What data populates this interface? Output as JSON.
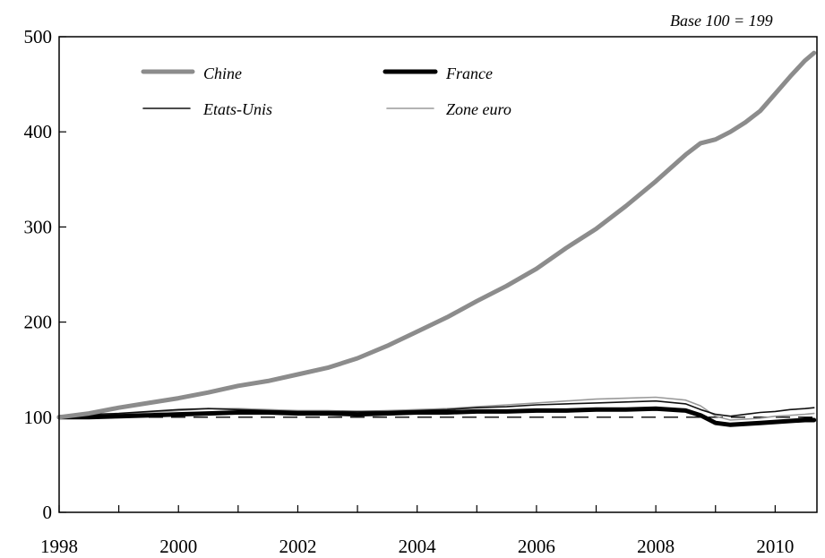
{
  "chart_data": {
    "type": "line",
    "title": "",
    "note": "Base 100 = 199",
    "xlabel": "",
    "ylabel": "",
    "xlim": [
      1998,
      2010.7
    ],
    "ylim": [
      0,
      500
    ],
    "x_ticks": [
      1998,
      2000,
      2002,
      2004,
      2006,
      2008,
      2010
    ],
    "y_ticks": [
      0,
      100,
      200,
      300,
      400,
      500
    ],
    "reference_line": 100,
    "grid": false,
    "legend_position": "top-left",
    "series": [
      {
        "name": "Chine",
        "color": "#8c8c8c",
        "width": 5,
        "points": [
          [
            1998.0,
            100
          ],
          [
            1998.5,
            104
          ],
          [
            1999.0,
            110
          ],
          [
            1999.5,
            115
          ],
          [
            2000.0,
            120
          ],
          [
            2000.5,
            126
          ],
          [
            2001.0,
            133
          ],
          [
            2001.5,
            138
          ],
          [
            2002.0,
            145
          ],
          [
            2002.5,
            152
          ],
          [
            2003.0,
            162
          ],
          [
            2003.5,
            175
          ],
          [
            2004.0,
            190
          ],
          [
            2004.5,
            205
          ],
          [
            2005.0,
            222
          ],
          [
            2005.5,
            238
          ],
          [
            2006.0,
            256
          ],
          [
            2006.5,
            278
          ],
          [
            2007.0,
            298
          ],
          [
            2007.5,
            322
          ],
          [
            2008.0,
            348
          ],
          [
            2008.5,
            376
          ],
          [
            2008.75,
            388
          ],
          [
            2009.0,
            392
          ],
          [
            2009.25,
            400
          ],
          [
            2009.5,
            410
          ],
          [
            2009.75,
            422
          ],
          [
            2010.0,
            440
          ],
          [
            2010.25,
            458
          ],
          [
            2010.5,
            475
          ],
          [
            2010.65,
            483
          ]
        ]
      },
      {
        "name": "France",
        "color": "#000000",
        "width": 5,
        "points": [
          [
            1998.0,
            100
          ],
          [
            1998.5,
            100
          ],
          [
            1999.0,
            101
          ],
          [
            1999.5,
            102
          ],
          [
            2000.0,
            103
          ],
          [
            2000.5,
            104
          ],
          [
            2001.0,
            105
          ],
          [
            2001.5,
            105
          ],
          [
            2002.0,
            104
          ],
          [
            2002.5,
            104
          ],
          [
            2003.0,
            103
          ],
          [
            2003.5,
            104
          ],
          [
            2004.0,
            105
          ],
          [
            2004.5,
            105
          ],
          [
            2005.0,
            106
          ],
          [
            2005.5,
            106
          ],
          [
            2006.0,
            107
          ],
          [
            2006.5,
            107
          ],
          [
            2007.0,
            108
          ],
          [
            2007.5,
            108
          ],
          [
            2008.0,
            109
          ],
          [
            2008.5,
            107
          ],
          [
            2008.75,
            102
          ],
          [
            2009.0,
            94
          ],
          [
            2009.25,
            92
          ],
          [
            2009.5,
            93
          ],
          [
            2009.75,
            94
          ],
          [
            2010.0,
            95
          ],
          [
            2010.25,
            96
          ],
          [
            2010.5,
            97
          ],
          [
            2010.65,
            97
          ]
        ]
      },
      {
        "name": "Etats-Unis",
        "color": "#111111",
        "width": 1.6,
        "points": [
          [
            1998.0,
            101
          ],
          [
            1998.5,
            103
          ],
          [
            1999.0,
            104
          ],
          [
            1999.5,
            106
          ],
          [
            2000.0,
            108
          ],
          [
            2000.5,
            109
          ],
          [
            2001.0,
            108
          ],
          [
            2001.5,
            107
          ],
          [
            2002.0,
            106
          ],
          [
            2002.5,
            106
          ],
          [
            2003.0,
            106
          ],
          [
            2003.5,
            106
          ],
          [
            2004.0,
            107
          ],
          [
            2004.5,
            108
          ],
          [
            2005.0,
            110
          ],
          [
            2005.5,
            111
          ],
          [
            2006.0,
            113
          ],
          [
            2006.5,
            114
          ],
          [
            2007.0,
            115
          ],
          [
            2007.5,
            116
          ],
          [
            2008.0,
            117
          ],
          [
            2008.5,
            114
          ],
          [
            2008.75,
            108
          ],
          [
            2009.0,
            103
          ],
          [
            2009.25,
            101
          ],
          [
            2009.5,
            103
          ],
          [
            2009.75,
            105
          ],
          [
            2010.0,
            106
          ],
          [
            2010.25,
            108
          ],
          [
            2010.5,
            109
          ],
          [
            2010.65,
            110
          ]
        ]
      },
      {
        "name": "Zone euro",
        "color": "#9a9a9a",
        "width": 1.6,
        "points": [
          [
            1998.0,
            100
          ],
          [
            1998.5,
            101
          ],
          [
            1999.0,
            103
          ],
          [
            1999.5,
            105
          ],
          [
            2000.0,
            107
          ],
          [
            2000.5,
            109
          ],
          [
            2001.0,
            109
          ],
          [
            2001.5,
            108
          ],
          [
            2002.0,
            107
          ],
          [
            2002.5,
            107
          ],
          [
            2003.0,
            106
          ],
          [
            2003.5,
            107
          ],
          [
            2004.0,
            108
          ],
          [
            2004.5,
            109
          ],
          [
            2005.0,
            111
          ],
          [
            2005.5,
            113
          ],
          [
            2006.0,
            115
          ],
          [
            2006.5,
            117
          ],
          [
            2007.0,
            119
          ],
          [
            2007.5,
            120
          ],
          [
            2008.0,
            121
          ],
          [
            2008.5,
            118
          ],
          [
            2008.75,
            112
          ],
          [
            2009.0,
            101
          ],
          [
            2009.25,
            97
          ],
          [
            2009.5,
            98
          ],
          [
            2009.75,
            99
          ],
          [
            2010.0,
            101
          ],
          [
            2010.25,
            102
          ],
          [
            2010.5,
            103
          ],
          [
            2010.65,
            104
          ]
        ]
      }
    ]
  }
}
